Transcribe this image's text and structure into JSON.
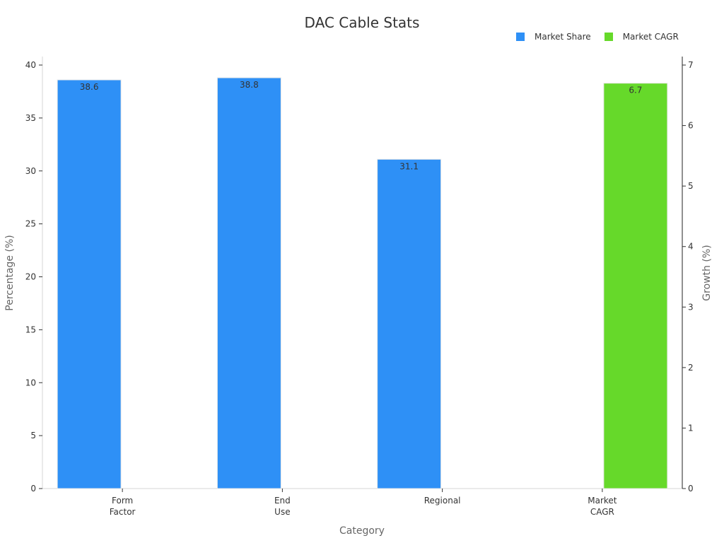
{
  "chart_data": {
    "type": "bar",
    "title": "DAC Cable Stats",
    "xlabel": "Category",
    "ylabel": "Percentage (%)",
    "y2label": "Growth (%)",
    "categories": [
      [
        "Form",
        "Factor"
      ],
      [
        "End",
        "Use"
      ],
      [
        "Regional"
      ],
      [
        "Market",
        "CAGR"
      ]
    ],
    "series": [
      {
        "name": "Market Share",
        "axis": "left",
        "color": "#2e90f6",
        "values": [
          38.6,
          38.8,
          31.1,
          null
        ]
      },
      {
        "name": "Market CAGR",
        "axis": "right",
        "color": "#66d92a",
        "values": [
          null,
          null,
          null,
          6.7
        ]
      }
    ],
    "ylim": [
      0,
      40
    ],
    "yticks": [
      0,
      5,
      10,
      15,
      20,
      25,
      30,
      35,
      40
    ],
    "y2lim": [
      0,
      7
    ],
    "y2ticks": [
      0,
      1,
      2,
      3,
      4,
      5,
      6,
      7
    ],
    "grid": false,
    "legend_position": "top-right"
  }
}
